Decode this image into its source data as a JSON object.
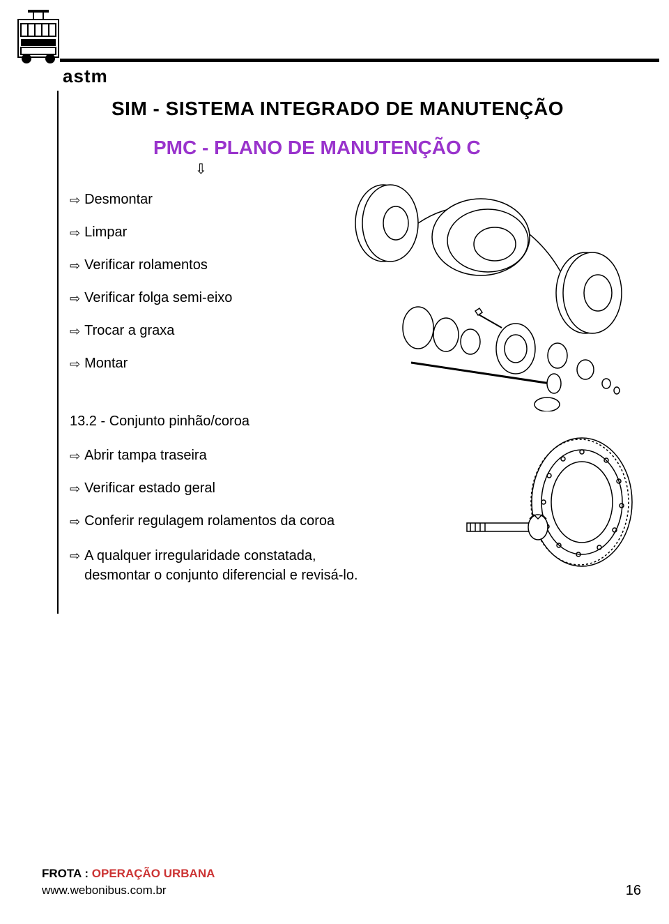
{
  "header": {
    "brand": "astm"
  },
  "titles": {
    "main": "SIM - SISTEMA INTEGRADO DE MANUTENÇÃO",
    "sub": "PMC - PLANO DE MANUTENÇÃO C",
    "sub_color": "#9933cc",
    "down_arrow": "⇩"
  },
  "section1": {
    "items": [
      "Desmontar",
      "Limpar",
      "Verificar rolamentos",
      "Verificar folga semi-eixo",
      "Trocar a graxa",
      "Montar"
    ]
  },
  "section2": {
    "heading": "13.2 - Conjunto pinhão/coroa",
    "items": [
      "Abrir tampa traseira",
      "Verificar estado geral",
      "Conferir regulagem rolamentos da coroa",
      "A qualquer irregularidade constatada, desmontar o conjunto diferencial e revisá-lo."
    ]
  },
  "footer": {
    "line1_pre": "FROTA : ",
    "line1_highlight": "OPERAÇÃO URBANA",
    "line1_highlight_color": "#cc3333",
    "line2": "www.webonibus.com.br",
    "page": "16"
  },
  "diagrams": {
    "axle": {
      "type": "technical-drawing",
      "description": "exploded rear axle assembly",
      "stroke": "#000000"
    },
    "gear": {
      "type": "technical-drawing",
      "description": "ring gear and pinion shaft",
      "stroke": "#000000"
    }
  }
}
